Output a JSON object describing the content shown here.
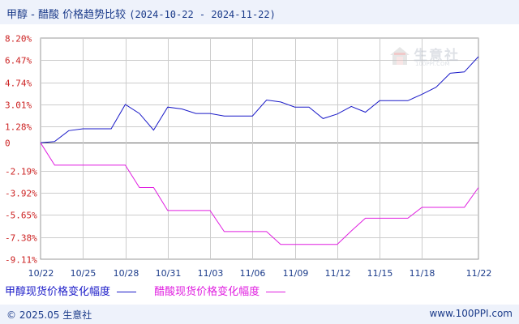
{
  "header": {
    "title": "甲醇 - 醋酸 价格趋势比较",
    "date_range": "(2024-10-22 - 2024-11-22)"
  },
  "footer": {
    "copyright": "© 2025.05 生意社",
    "site": "www.100PPI.com"
  },
  "watermark": {
    "text": "生意社",
    "url": "100PPI.COM"
  },
  "colors": {
    "methanol": "#1a1ac8",
    "acetic": "#e01ee0",
    "grid": "#cccccc",
    "axis_text": "#cc2222",
    "label_text": "#1b3b8a"
  },
  "chart_data": {
    "type": "line",
    "title": "甲醇 - 醋酸 价格趋势比较",
    "y_ticks": [
      "8.20%",
      "6.47%",
      "4.74%",
      "3.01%",
      "1.28%",
      "0",
      "-2.19%",
      "-3.92%",
      "-5.65%",
      "-7.38%",
      "-9.11%"
    ],
    "y_tick_values": [
      8.2,
      6.47,
      4.74,
      3.01,
      1.28,
      0,
      -2.19,
      -3.92,
      -5.65,
      -7.38,
      -9.11
    ],
    "ylim": [
      -9.11,
      8.2
    ],
    "x_ticks": [
      "10/22",
      "10/25",
      "10/28",
      "10/31",
      "11/03",
      "11/06",
      "11/09",
      "11/12",
      "11/15",
      "11/18",
      "11/22"
    ],
    "x_tick_days": [
      0,
      3,
      6,
      9,
      12,
      15,
      18,
      21,
      24,
      27,
      31
    ],
    "grid": true,
    "legend_position": "bottom-left",
    "series": [
      {
        "name": "甲醇现货价格变化幅度",
        "color": "#1a1ac8",
        "points": [
          [
            0,
            0
          ],
          [
            1,
            0.1
          ],
          [
            2,
            0.95
          ],
          [
            3,
            1.1
          ],
          [
            4,
            1.1
          ],
          [
            5,
            1.1
          ],
          [
            6,
            3.0
          ],
          [
            7,
            2.3
          ],
          [
            8,
            1.0
          ],
          [
            9,
            2.8
          ],
          [
            10,
            2.65
          ],
          [
            11,
            2.3
          ],
          [
            12,
            2.3
          ],
          [
            13,
            2.1
          ],
          [
            14,
            2.1
          ],
          [
            15,
            2.1
          ],
          [
            16,
            3.35
          ],
          [
            17,
            3.2
          ],
          [
            18,
            2.8
          ],
          [
            19,
            2.8
          ],
          [
            20,
            1.9
          ],
          [
            21,
            2.25
          ],
          [
            22,
            2.85
          ],
          [
            23,
            2.4
          ],
          [
            24,
            3.3
          ],
          [
            25,
            3.3
          ],
          [
            26,
            3.3
          ],
          [
            27,
            3.8
          ],
          [
            28,
            4.35
          ],
          [
            29,
            5.45
          ],
          [
            30,
            5.55
          ],
          [
            31,
            6.75
          ]
        ]
      },
      {
        "name": "醋酸现货价格变化幅度",
        "color": "#e01ee0",
        "points": [
          [
            0,
            0
          ],
          [
            1,
            -1.75
          ],
          [
            2,
            -1.75
          ],
          [
            3,
            -1.75
          ],
          [
            4,
            -1.75
          ],
          [
            5,
            -1.75
          ],
          [
            6,
            -1.75
          ],
          [
            7,
            -3.5
          ],
          [
            8,
            -3.5
          ],
          [
            9,
            -5.3
          ],
          [
            10,
            -5.3
          ],
          [
            11,
            -5.3
          ],
          [
            12,
            -5.3
          ],
          [
            13,
            -6.95
          ],
          [
            14,
            -6.95
          ],
          [
            15,
            -6.95
          ],
          [
            16,
            -6.95
          ],
          [
            17,
            -7.95
          ],
          [
            18,
            -7.95
          ],
          [
            19,
            -7.95
          ],
          [
            20,
            -7.95
          ],
          [
            21,
            -7.95
          ],
          [
            22,
            -6.9
          ],
          [
            23,
            -5.9
          ],
          [
            24,
            -5.9
          ],
          [
            25,
            -5.9
          ],
          [
            26,
            -5.9
          ],
          [
            27,
            -5.05
          ],
          [
            28,
            -5.05
          ],
          [
            29,
            -5.05
          ],
          [
            30,
            -5.05
          ],
          [
            31,
            -3.5
          ]
        ]
      }
    ]
  }
}
